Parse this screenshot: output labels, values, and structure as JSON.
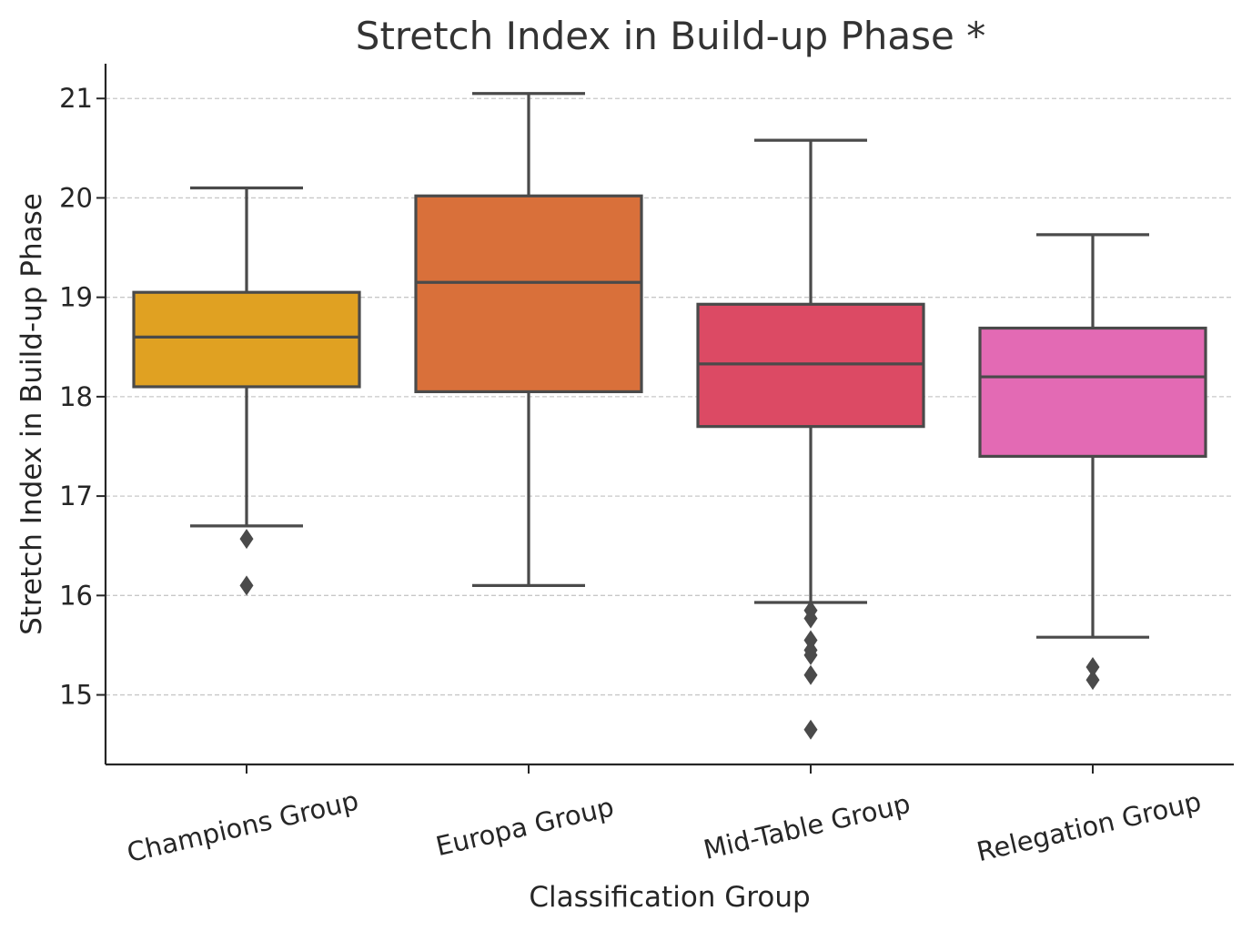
{
  "chart_data": {
    "type": "boxplot",
    "title": "Stretch Index in Build-up Phase *",
    "xlabel": "Classification Group",
    "ylabel": "Stretch Index in Build-up Phase",
    "ylim": [
      14.3,
      21.35
    ],
    "yticks": [
      "15",
      "16",
      "17",
      "18",
      "19",
      "20",
      "21"
    ],
    "grid": "horizontal dashed",
    "categories": [
      "Champions Group",
      "Europa Group",
      "Mid-Table Group",
      "Relegation Group"
    ],
    "colors": [
      "#e0a122",
      "#d9703a",
      "#dc4a64",
      "#e36ab4"
    ],
    "edge_color": "#4a4a4a",
    "boxes": [
      {
        "category": "Champions Group",
        "whisker_low": 16.7,
        "q1": 18.1,
        "median": 18.6,
        "q3": 19.05,
        "whisker_high": 20.1,
        "outliers": [
          16.57,
          16.1
        ]
      },
      {
        "category": "Europa Group",
        "whisker_low": 16.1,
        "q1": 18.05,
        "median": 19.15,
        "q3": 20.02,
        "whisker_high": 21.05,
        "outliers": []
      },
      {
        "category": "Mid-Table Group",
        "whisker_low": 15.93,
        "q1": 17.7,
        "median": 18.33,
        "q3": 18.93,
        "whisker_high": 20.58,
        "outliers": [
          15.85,
          15.77,
          15.55,
          15.45,
          15.4,
          15.2,
          14.65
        ]
      },
      {
        "category": "Relegation Group",
        "whisker_low": 15.58,
        "q1": 17.4,
        "median": 18.2,
        "q3": 18.69,
        "whisker_high": 19.63,
        "outliers": [
          15.28,
          15.15
        ]
      }
    ]
  }
}
